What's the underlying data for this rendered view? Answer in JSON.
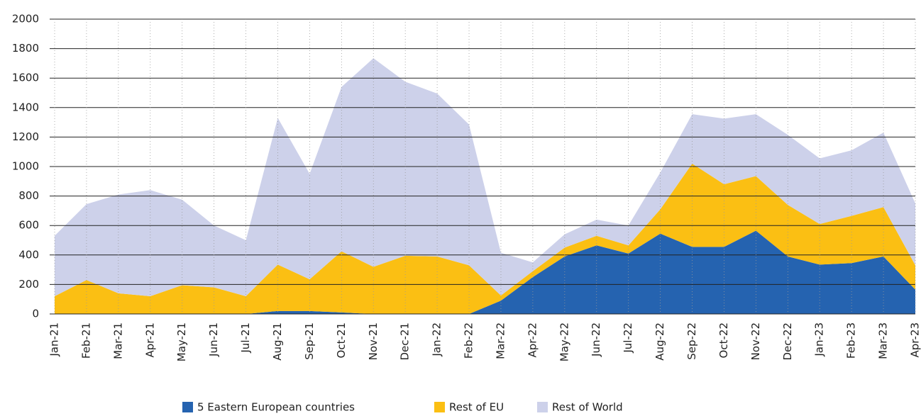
{
  "chart_data": {
    "type": "stacked_area",
    "categories": [
      "Jan-21",
      "Feb-21",
      "Mar-21",
      "Apr-21",
      "May-21",
      "Jun-21",
      "Jul-21",
      "Aug-21",
      "Sep-21",
      "Oct-21",
      "Nov-21",
      "Dec-21",
      "Jan-22",
      "Feb-22",
      "Mar-22",
      "Apr-22",
      "May-22",
      "Jun-22",
      "Jul-22",
      "Aug-22",
      "Sep-22",
      "Oct-22",
      "Nov-22",
      "Dec-22",
      "Jan-23",
      "Feb-23",
      "Mar-23",
      "Apr-23"
    ],
    "series": [
      {
        "name": "5 Eastern European countries",
        "color": "#2563b0",
        "values": [
          0,
          0,
          0,
          0,
          0,
          0,
          0,
          20,
          20,
          10,
          0,
          0,
          0,
          0,
          90,
          250,
          390,
          465,
          410,
          545,
          455,
          455,
          565,
          390,
          335,
          345,
          390,
          165
        ]
      },
      {
        "name": "Rest of EU",
        "color": "#fbbf13",
        "values": [
          120,
          230,
          140,
          120,
          195,
          180,
          120,
          315,
          215,
          415,
          320,
          395,
          390,
          330,
          35,
          40,
          60,
          65,
          55,
          165,
          565,
          425,
          370,
          350,
          275,
          320,
          335,
          165
        ]
      },
      {
        "name": "Rest of World",
        "color": "#cdd1ea",
        "values": [
          410,
          515,
          670,
          720,
          580,
          420,
          380,
          995,
          715,
          1115,
          1415,
          1180,
          1105,
          955,
          290,
          60,
          90,
          110,
          135,
          250,
          335,
          445,
          420,
          475,
          445,
          445,
          505,
          420
        ]
      }
    ],
    "ylim": [
      0,
      2000
    ],
    "yticks": [
      0,
      200,
      400,
      600,
      800,
      1000,
      1200,
      1400,
      1600,
      1800,
      2000
    ],
    "grid": true,
    "legend": "bottom"
  }
}
